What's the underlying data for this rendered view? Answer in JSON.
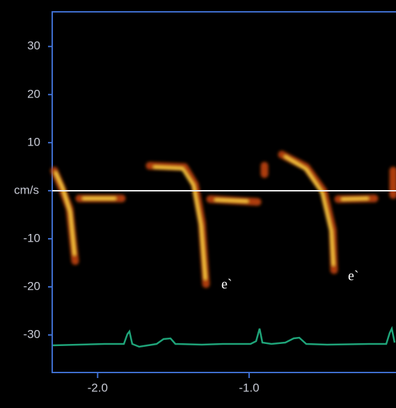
{
  "chart_data": {
    "type": "doppler",
    "ylabel": "cm/s",
    "ylim": [
      -37.8,
      37.2
    ],
    "yticks": [
      30,
      20,
      10,
      0,
      -10,
      -20,
      -30
    ],
    "xlim": [
      -2.3,
      -0.03
    ],
    "xticks": [
      {
        "value": -2,
        "label": "-2.0"
      },
      {
        "value": -1,
        "label": "-1.0"
      }
    ],
    "annotations": [
      "e`",
      "e`"
    ]
  }
}
